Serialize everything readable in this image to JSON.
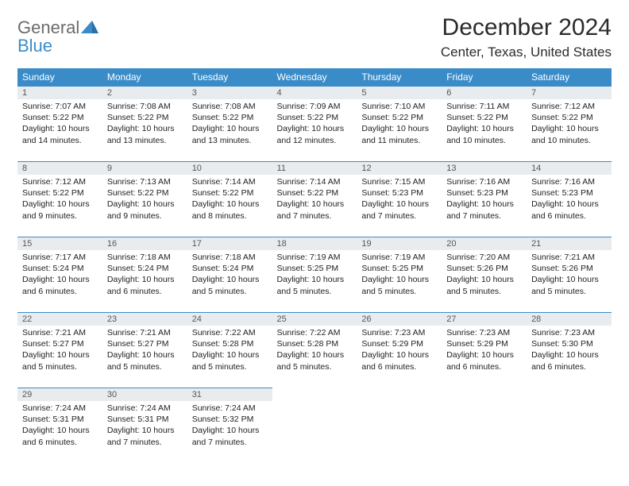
{
  "logo": {
    "text1": "General",
    "text2": "Blue"
  },
  "title": "December 2024",
  "location": "Center, Texas, United States",
  "colors": {
    "header_bg": "#3a8cc9",
    "header_text": "#ffffff",
    "dayrow_bg": "#e9ecef",
    "dayrow_border": "#3a8cc9",
    "body_text": "#222222",
    "page_bg": "#ffffff"
  },
  "weekdays": [
    "Sunday",
    "Monday",
    "Tuesday",
    "Wednesday",
    "Thursday",
    "Friday",
    "Saturday"
  ],
  "weeks": [
    [
      {
        "day": "1",
        "sunrise": "Sunrise: 7:07 AM",
        "sunset": "Sunset: 5:22 PM",
        "daylight": "Daylight: 10 hours and 14 minutes."
      },
      {
        "day": "2",
        "sunrise": "Sunrise: 7:08 AM",
        "sunset": "Sunset: 5:22 PM",
        "daylight": "Daylight: 10 hours and 13 minutes."
      },
      {
        "day": "3",
        "sunrise": "Sunrise: 7:08 AM",
        "sunset": "Sunset: 5:22 PM",
        "daylight": "Daylight: 10 hours and 13 minutes."
      },
      {
        "day": "4",
        "sunrise": "Sunrise: 7:09 AM",
        "sunset": "Sunset: 5:22 PM",
        "daylight": "Daylight: 10 hours and 12 minutes."
      },
      {
        "day": "5",
        "sunrise": "Sunrise: 7:10 AM",
        "sunset": "Sunset: 5:22 PM",
        "daylight": "Daylight: 10 hours and 11 minutes."
      },
      {
        "day": "6",
        "sunrise": "Sunrise: 7:11 AM",
        "sunset": "Sunset: 5:22 PM",
        "daylight": "Daylight: 10 hours and 10 minutes."
      },
      {
        "day": "7",
        "sunrise": "Sunrise: 7:12 AM",
        "sunset": "Sunset: 5:22 PM",
        "daylight": "Daylight: 10 hours and 10 minutes."
      }
    ],
    [
      {
        "day": "8",
        "sunrise": "Sunrise: 7:12 AM",
        "sunset": "Sunset: 5:22 PM",
        "daylight": "Daylight: 10 hours and 9 minutes."
      },
      {
        "day": "9",
        "sunrise": "Sunrise: 7:13 AM",
        "sunset": "Sunset: 5:22 PM",
        "daylight": "Daylight: 10 hours and 9 minutes."
      },
      {
        "day": "10",
        "sunrise": "Sunrise: 7:14 AM",
        "sunset": "Sunset: 5:22 PM",
        "daylight": "Daylight: 10 hours and 8 minutes."
      },
      {
        "day": "11",
        "sunrise": "Sunrise: 7:14 AM",
        "sunset": "Sunset: 5:22 PM",
        "daylight": "Daylight: 10 hours and 7 minutes."
      },
      {
        "day": "12",
        "sunrise": "Sunrise: 7:15 AM",
        "sunset": "Sunset: 5:23 PM",
        "daylight": "Daylight: 10 hours and 7 minutes."
      },
      {
        "day": "13",
        "sunrise": "Sunrise: 7:16 AM",
        "sunset": "Sunset: 5:23 PM",
        "daylight": "Daylight: 10 hours and 7 minutes."
      },
      {
        "day": "14",
        "sunrise": "Sunrise: 7:16 AM",
        "sunset": "Sunset: 5:23 PM",
        "daylight": "Daylight: 10 hours and 6 minutes."
      }
    ],
    [
      {
        "day": "15",
        "sunrise": "Sunrise: 7:17 AM",
        "sunset": "Sunset: 5:24 PM",
        "daylight": "Daylight: 10 hours and 6 minutes."
      },
      {
        "day": "16",
        "sunrise": "Sunrise: 7:18 AM",
        "sunset": "Sunset: 5:24 PM",
        "daylight": "Daylight: 10 hours and 6 minutes."
      },
      {
        "day": "17",
        "sunrise": "Sunrise: 7:18 AM",
        "sunset": "Sunset: 5:24 PM",
        "daylight": "Daylight: 10 hours and 5 minutes."
      },
      {
        "day": "18",
        "sunrise": "Sunrise: 7:19 AM",
        "sunset": "Sunset: 5:25 PM",
        "daylight": "Daylight: 10 hours and 5 minutes."
      },
      {
        "day": "19",
        "sunrise": "Sunrise: 7:19 AM",
        "sunset": "Sunset: 5:25 PM",
        "daylight": "Daylight: 10 hours and 5 minutes."
      },
      {
        "day": "20",
        "sunrise": "Sunrise: 7:20 AM",
        "sunset": "Sunset: 5:26 PM",
        "daylight": "Daylight: 10 hours and 5 minutes."
      },
      {
        "day": "21",
        "sunrise": "Sunrise: 7:21 AM",
        "sunset": "Sunset: 5:26 PM",
        "daylight": "Daylight: 10 hours and 5 minutes."
      }
    ],
    [
      {
        "day": "22",
        "sunrise": "Sunrise: 7:21 AM",
        "sunset": "Sunset: 5:27 PM",
        "daylight": "Daylight: 10 hours and 5 minutes."
      },
      {
        "day": "23",
        "sunrise": "Sunrise: 7:21 AM",
        "sunset": "Sunset: 5:27 PM",
        "daylight": "Daylight: 10 hours and 5 minutes."
      },
      {
        "day": "24",
        "sunrise": "Sunrise: 7:22 AM",
        "sunset": "Sunset: 5:28 PM",
        "daylight": "Daylight: 10 hours and 5 minutes."
      },
      {
        "day": "25",
        "sunrise": "Sunrise: 7:22 AM",
        "sunset": "Sunset: 5:28 PM",
        "daylight": "Daylight: 10 hours and 5 minutes."
      },
      {
        "day": "26",
        "sunrise": "Sunrise: 7:23 AM",
        "sunset": "Sunset: 5:29 PM",
        "daylight": "Daylight: 10 hours and 6 minutes."
      },
      {
        "day": "27",
        "sunrise": "Sunrise: 7:23 AM",
        "sunset": "Sunset: 5:29 PM",
        "daylight": "Daylight: 10 hours and 6 minutes."
      },
      {
        "day": "28",
        "sunrise": "Sunrise: 7:23 AM",
        "sunset": "Sunset: 5:30 PM",
        "daylight": "Daylight: 10 hours and 6 minutes."
      }
    ],
    [
      {
        "day": "29",
        "sunrise": "Sunrise: 7:24 AM",
        "sunset": "Sunset: 5:31 PM",
        "daylight": "Daylight: 10 hours and 6 minutes."
      },
      {
        "day": "30",
        "sunrise": "Sunrise: 7:24 AM",
        "sunset": "Sunset: 5:31 PM",
        "daylight": "Daylight: 10 hours and 7 minutes."
      },
      {
        "day": "31",
        "sunrise": "Sunrise: 7:24 AM",
        "sunset": "Sunset: 5:32 PM",
        "daylight": "Daylight: 10 hours and 7 minutes."
      },
      null,
      null,
      null,
      null
    ]
  ]
}
